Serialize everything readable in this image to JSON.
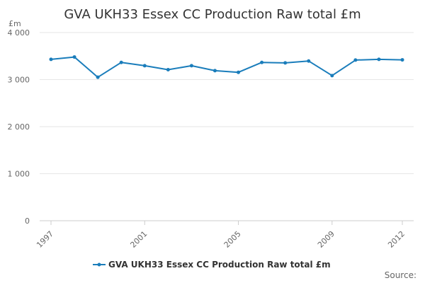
{
  "chart_data": {
    "type": "line",
    "title": "GVA UKH33 Essex CC Production Raw total £m",
    "ylabel": "£m",
    "xlabel": "",
    "x": [
      1997,
      1998,
      1999,
      2000,
      2001,
      2002,
      2003,
      2004,
      2005,
      2006,
      2007,
      2008,
      2009,
      2010,
      2011,
      2012
    ],
    "x_tick_labels": [
      "1997",
      "2001",
      "2005",
      "2009",
      "2012"
    ],
    "x_tick_values": [
      1997,
      2001,
      2005,
      2009,
      2012
    ],
    "ylim": [
      0,
      4000
    ],
    "y_ticks": [
      0,
      1000,
      2000,
      3000,
      4000
    ],
    "y_tick_labels": [
      "0",
      "1 000",
      "2 000",
      "3 000",
      "4 000"
    ],
    "series": [
      {
        "name": "GVA UKH33 Essex CC Production Raw total £m",
        "color": "#1a7dbb",
        "values": [
          3430,
          3480,
          3050,
          3365,
          3295,
          3210,
          3295,
          3190,
          3155,
          3365,
          3355,
          3395,
          3085,
          3415,
          3430,
          3420
        ]
      }
    ],
    "grid": "horizontal",
    "legend": "bottom-center"
  },
  "source_label": "Source:"
}
